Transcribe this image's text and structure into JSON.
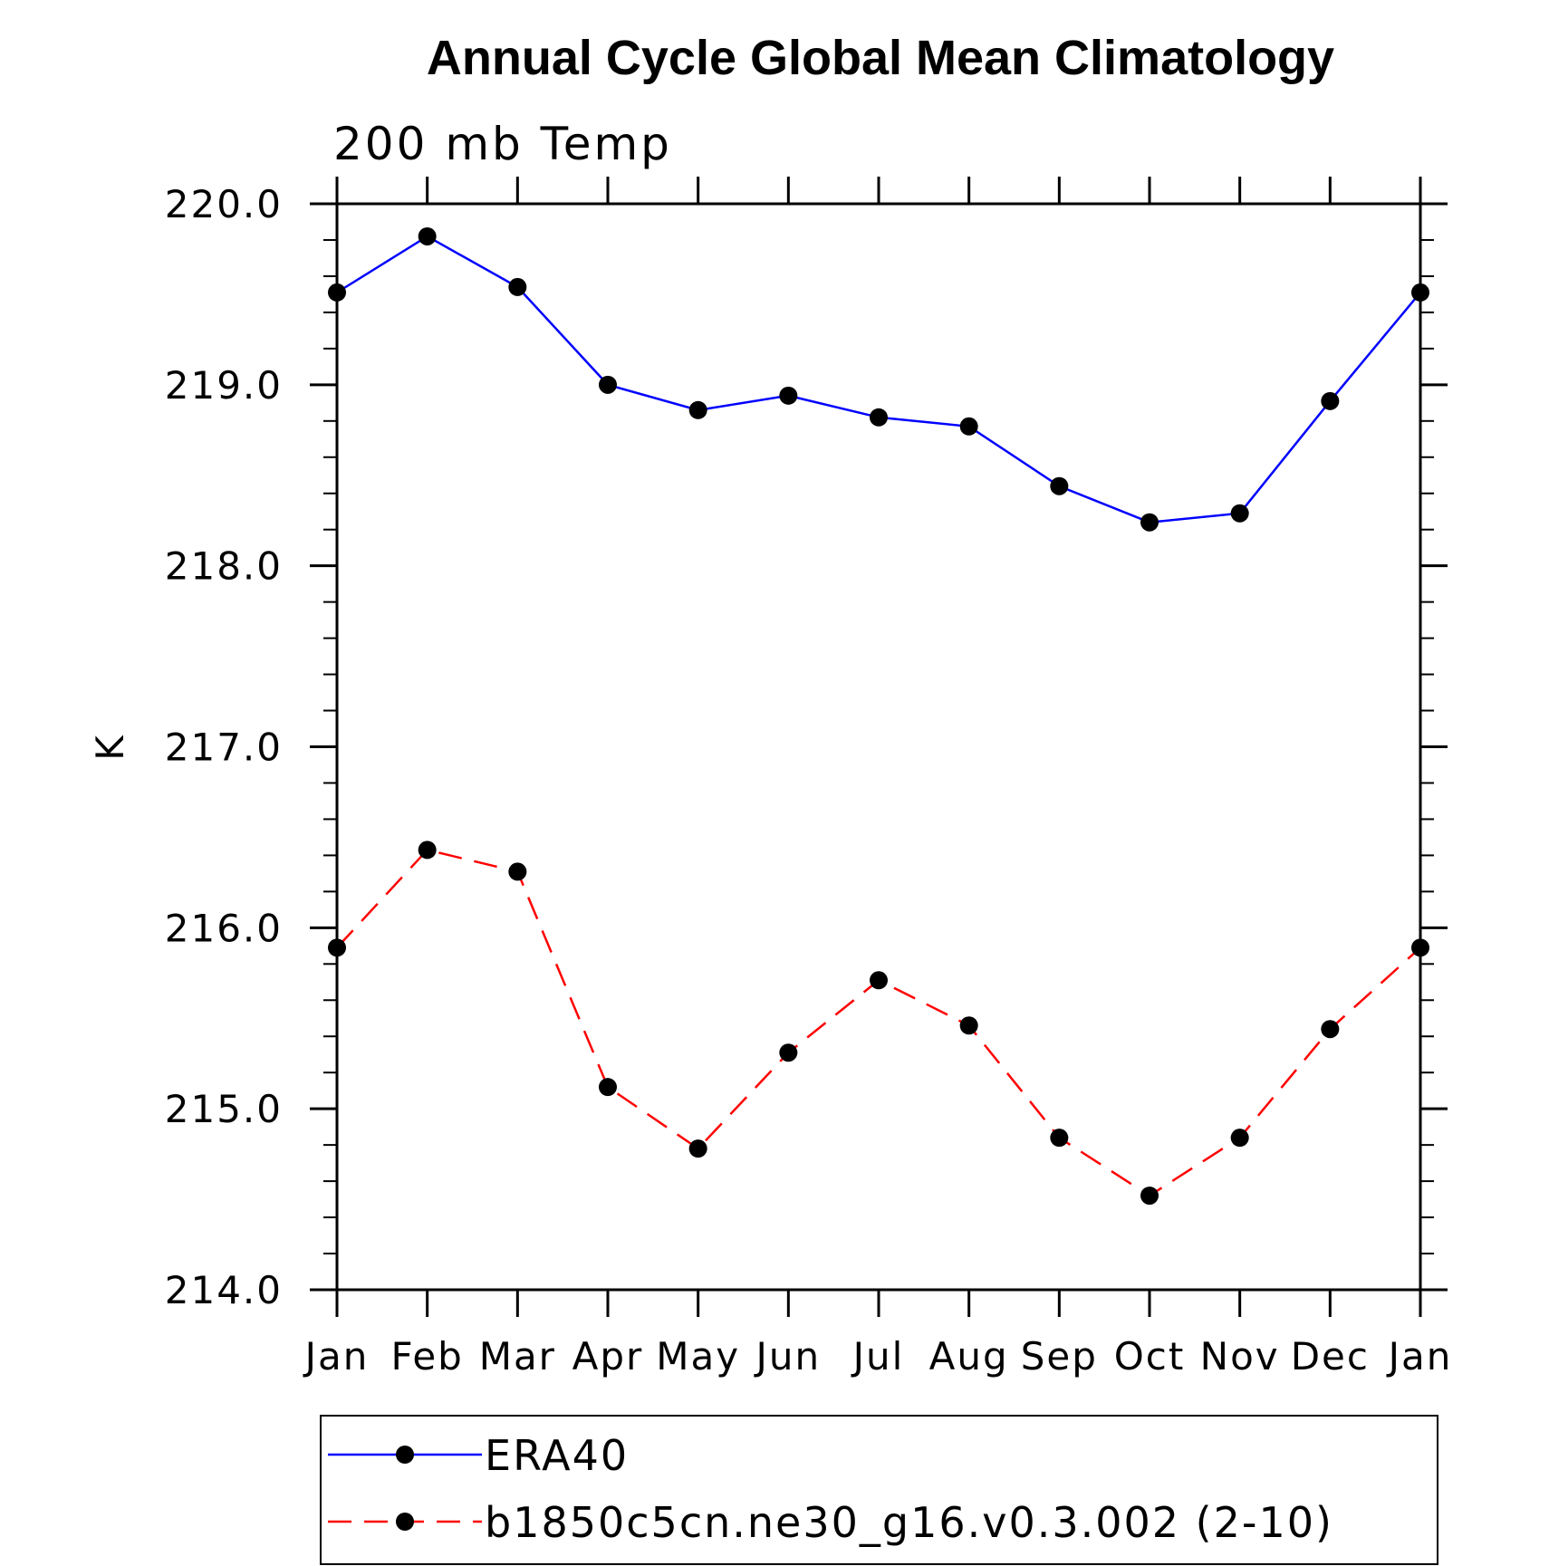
{
  "chart_data": {
    "type": "line",
    "title": "Annual Cycle Global Mean Climatology",
    "subtitle": "200 mb Temp",
    "ylabel": "K",
    "xlabel": "",
    "categories": [
      "Jan",
      "Feb",
      "Mar",
      "Apr",
      "May",
      "Jun",
      "Jul",
      "Aug",
      "Sep",
      "Oct",
      "Nov",
      "Dec",
      "Jan"
    ],
    "ylim": [
      214.0,
      220.0
    ],
    "yticks": [
      "214.0",
      "215.0",
      "216.0",
      "217.0",
      "218.0",
      "219.0",
      "220.0"
    ],
    "series": [
      {
        "name": "ERA40",
        "color": "#0000ff",
        "dash": "solid",
        "marker": "filled-circle",
        "values": [
          219.51,
          219.82,
          219.54,
          219.0,
          218.86,
          218.94,
          218.82,
          218.77,
          218.44,
          218.24,
          218.29,
          218.91,
          219.51
        ]
      },
      {
        "name": "b1850c5cn.ne30_g16.v0.3.002 (2-10)",
        "color": "#ff0000",
        "dash": "dashed",
        "marker": "filled-circle",
        "values": [
          215.89,
          216.43,
          216.31,
          215.12,
          214.78,
          215.31,
          215.71,
          215.46,
          214.84,
          214.52,
          214.84,
          215.44,
          215.89
        ]
      }
    ],
    "grid": false,
    "legend_position": "bottom"
  }
}
